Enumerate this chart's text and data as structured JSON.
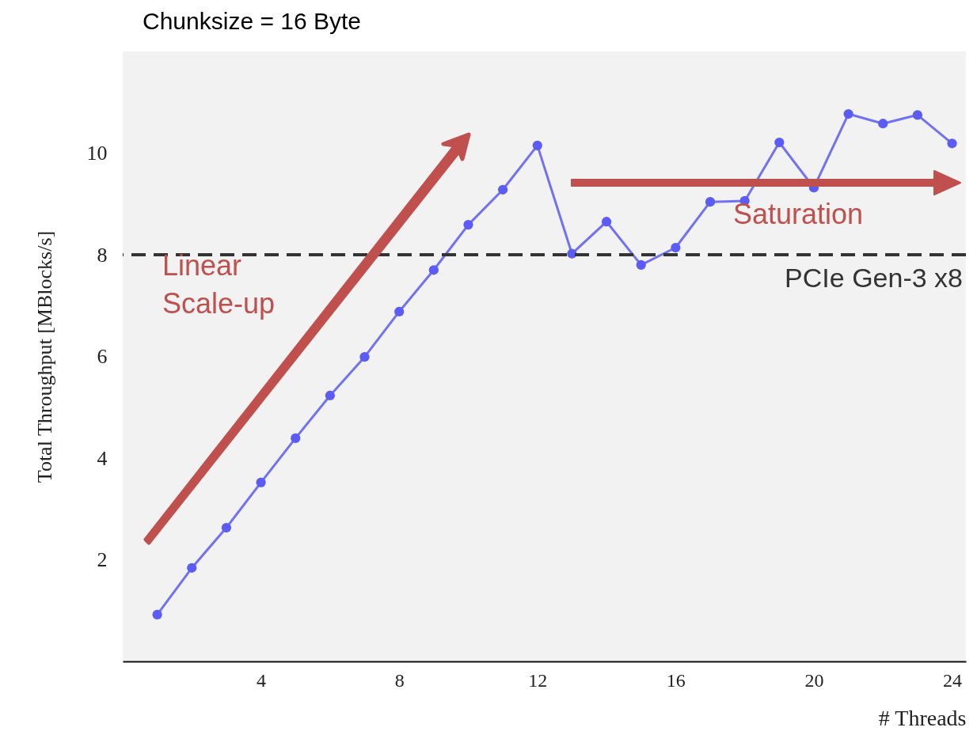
{
  "chart_data": {
    "type": "line",
    "title": "Chunksize = 16 Byte",
    "xlabel": "# Threads",
    "ylabel": "Total Throughput [MBlocks/s]",
    "x": [
      1,
      2,
      3,
      4,
      5,
      6,
      7,
      8,
      9,
      10,
      11,
      12,
      13,
      14,
      15,
      16,
      17,
      18,
      19,
      20,
      21,
      22,
      23,
      24
    ],
    "series": [
      {
        "color": "#5b5bf5",
        "values": [
          0.92,
          1.84,
          2.63,
          3.52,
          4.39,
          5.23,
          5.99,
          6.88,
          7.7,
          8.59,
          9.28,
          10.15,
          8.02,
          8.65,
          7.8,
          8.14,
          9.04,
          9.06,
          10.21,
          9.32,
          10.77,
          10.58,
          10.75,
          10.19
        ]
      }
    ],
    "xlim": [
      0,
      24.4
    ],
    "ylim": [
      0,
      12
    ],
    "xticks": [
      4,
      8,
      12,
      16,
      20,
      24
    ],
    "yticks": [
      2,
      4,
      6,
      8,
      10
    ],
    "marker": "circle",
    "ref_lines": [
      {
        "axis": "y",
        "value": 8,
        "label": "PCIe Gen-3 x8",
        "color": "#333333",
        "line_style": "dashed"
      }
    ],
    "annotations": [
      "Linear Scale-up",
      "Saturation"
    ]
  }
}
